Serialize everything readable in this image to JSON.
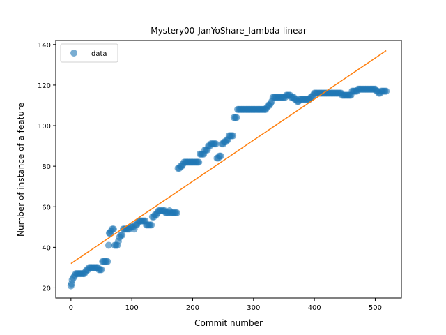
{
  "chart_data": {
    "type": "scatter",
    "title": "Mystery00-JanYoShare_lambda-linear",
    "xlabel": "Commit number",
    "ylabel": "Number of instance of a feature",
    "xlim": [
      -25,
      543
    ],
    "ylim": [
      15,
      142
    ],
    "x_ticks": [
      0,
      100,
      200,
      300,
      400,
      500
    ],
    "y_ticks": [
      20,
      40,
      60,
      80,
      100,
      120,
      140
    ],
    "grid": false,
    "legend_position": "top-left",
    "series": [
      {
        "name": "data",
        "kind": "scatter",
        "color": "#1f77b4",
        "points": [
          [
            0,
            21
          ],
          [
            1,
            22
          ],
          [
            2,
            24
          ],
          [
            4,
            25
          ],
          [
            6,
            26
          ],
          [
            8,
            27
          ],
          [
            10,
            27
          ],
          [
            12,
            27
          ],
          [
            14,
            27
          ],
          [
            16,
            27
          ],
          [
            18,
            27
          ],
          [
            20,
            27
          ],
          [
            22,
            27
          ],
          [
            24,
            28
          ],
          [
            26,
            29
          ],
          [
            28,
            29
          ],
          [
            30,
            30
          ],
          [
            32,
            30
          ],
          [
            34,
            30
          ],
          [
            36,
            30
          ],
          [
            38,
            30
          ],
          [
            40,
            30
          ],
          [
            42,
            30
          ],
          [
            44,
            30
          ],
          [
            46,
            29
          ],
          [
            48,
            29
          ],
          [
            50,
            29
          ],
          [
            52,
            33
          ],
          [
            54,
            33
          ],
          [
            56,
            33
          ],
          [
            58,
            33
          ],
          [
            60,
            33
          ],
          [
            62,
            41
          ],
          [
            63,
            47
          ],
          [
            64,
            47
          ],
          [
            66,
            48
          ],
          [
            68,
            49
          ],
          [
            70,
            49
          ],
          [
            72,
            41
          ],
          [
            74,
            41
          ],
          [
            76,
            41
          ],
          [
            78,
            43
          ],
          [
            80,
            45
          ],
          [
            82,
            46
          ],
          [
            84,
            46
          ],
          [
            86,
            49
          ],
          [
            88,
            49
          ],
          [
            90,
            49
          ],
          [
            92,
            49
          ],
          [
            94,
            49
          ],
          [
            96,
            49
          ],
          [
            98,
            50
          ],
          [
            100,
            50
          ],
          [
            102,
            50
          ],
          [
            104,
            49
          ],
          [
            106,
            51
          ],
          [
            108,
            51
          ],
          [
            110,
            52
          ],
          [
            112,
            53
          ],
          [
            114,
            53
          ],
          [
            116,
            53
          ],
          [
            118,
            53
          ],
          [
            120,
            53
          ],
          [
            122,
            53
          ],
          [
            124,
            51
          ],
          [
            126,
            51
          ],
          [
            128,
            51
          ],
          [
            130,
            51
          ],
          [
            132,
            51
          ],
          [
            134,
            55
          ],
          [
            136,
            55
          ],
          [
            138,
            56
          ],
          [
            140,
            56
          ],
          [
            142,
            57
          ],
          [
            144,
            58
          ],
          [
            146,
            58
          ],
          [
            148,
            58
          ],
          [
            150,
            58
          ],
          [
            152,
            58
          ],
          [
            154,
            58
          ],
          [
            156,
            57
          ],
          [
            158,
            57
          ],
          [
            160,
            57
          ],
          [
            162,
            58
          ],
          [
            164,
            57
          ],
          [
            166,
            57
          ],
          [
            168,
            57
          ],
          [
            170,
            57
          ],
          [
            172,
            57
          ],
          [
            174,
            57
          ],
          [
            176,
            79
          ],
          [
            178,
            79
          ],
          [
            180,
            80
          ],
          [
            182,
            80
          ],
          [
            184,
            81
          ],
          [
            186,
            82
          ],
          [
            188,
            82
          ],
          [
            190,
            82
          ],
          [
            192,
            82
          ],
          [
            194,
            82
          ],
          [
            196,
            82
          ],
          [
            198,
            82
          ],
          [
            200,
            82
          ],
          [
            202,
            82
          ],
          [
            204,
            82
          ],
          [
            206,
            82
          ],
          [
            208,
            82
          ],
          [
            210,
            82
          ],
          [
            212,
            86
          ],
          [
            214,
            86
          ],
          [
            216,
            86
          ],
          [
            218,
            86
          ],
          [
            220,
            88
          ],
          [
            222,
            88
          ],
          [
            224,
            88
          ],
          [
            226,
            90
          ],
          [
            228,
            90
          ],
          [
            230,
            91
          ],
          [
            232,
            91
          ],
          [
            234,
            91
          ],
          [
            236,
            91
          ],
          [
            238,
            91
          ],
          [
            240,
            84
          ],
          [
            242,
            84
          ],
          [
            244,
            85
          ],
          [
            246,
            85
          ],
          [
            248,
            91
          ],
          [
            250,
            91
          ],
          [
            252,
            92
          ],
          [
            254,
            92
          ],
          [
            256,
            93
          ],
          [
            258,
            93
          ],
          [
            260,
            95
          ],
          [
            262,
            95
          ],
          [
            264,
            95
          ],
          [
            266,
            95
          ],
          [
            268,
            104
          ],
          [
            270,
            104
          ],
          [
            272,
            104
          ],
          [
            274,
            108
          ],
          [
            276,
            108
          ],
          [
            278,
            108
          ],
          [
            280,
            108
          ],
          [
            282,
            108
          ],
          [
            284,
            108
          ],
          [
            286,
            108
          ],
          [
            288,
            108
          ],
          [
            290,
            108
          ],
          [
            292,
            108
          ],
          [
            294,
            108
          ],
          [
            296,
            108
          ],
          [
            298,
            108
          ],
          [
            300,
            108
          ],
          [
            302,
            108
          ],
          [
            304,
            108
          ],
          [
            306,
            108
          ],
          [
            308,
            108
          ],
          [
            310,
            108
          ],
          [
            312,
            108
          ],
          [
            314,
            108
          ],
          [
            316,
            108
          ],
          [
            318,
            108
          ],
          [
            320,
            108
          ],
          [
            322,
            109
          ],
          [
            324,
            110
          ],
          [
            326,
            110
          ],
          [
            328,
            111
          ],
          [
            330,
            112
          ],
          [
            332,
            114
          ],
          [
            334,
            114
          ],
          [
            336,
            114
          ],
          [
            338,
            114
          ],
          [
            340,
            114
          ],
          [
            342,
            114
          ],
          [
            344,
            114
          ],
          [
            346,
            114
          ],
          [
            348,
            114
          ],
          [
            350,
            114
          ],
          [
            352,
            114
          ],
          [
            354,
            115
          ],
          [
            356,
            115
          ],
          [
            358,
            115
          ],
          [
            360,
            115
          ],
          [
            362,
            114
          ],
          [
            364,
            114
          ],
          [
            366,
            114
          ],
          [
            368,
            113
          ],
          [
            370,
            113
          ],
          [
            372,
            112
          ],
          [
            374,
            112
          ],
          [
            376,
            113
          ],
          [
            378,
            113
          ],
          [
            380,
            113
          ],
          [
            382,
            113
          ],
          [
            384,
            113
          ],
          [
            386,
            113
          ],
          [
            388,
            113
          ],
          [
            390,
            113
          ],
          [
            392,
            113
          ],
          [
            394,
            114
          ],
          [
            396,
            114
          ],
          [
            398,
            115
          ],
          [
            400,
            116
          ],
          [
            402,
            116
          ],
          [
            404,
            116
          ],
          [
            406,
            116
          ],
          [
            408,
            116
          ],
          [
            410,
            116
          ],
          [
            412,
            116
          ],
          [
            414,
            116
          ],
          [
            416,
            116
          ],
          [
            418,
            116
          ],
          [
            420,
            116
          ],
          [
            422,
            116
          ],
          [
            424,
            116
          ],
          [
            426,
            116
          ],
          [
            428,
            116
          ],
          [
            430,
            116
          ],
          [
            432,
            116
          ],
          [
            434,
            116
          ],
          [
            436,
            116
          ],
          [
            438,
            116
          ],
          [
            440,
            116
          ],
          [
            442,
            116
          ],
          [
            444,
            116
          ],
          [
            446,
            115
          ],
          [
            448,
            115
          ],
          [
            450,
            115
          ],
          [
            452,
            115
          ],
          [
            454,
            115
          ],
          [
            456,
            115
          ],
          [
            458,
            115
          ],
          [
            460,
            115
          ],
          [
            462,
            117
          ],
          [
            464,
            117
          ],
          [
            466,
            117
          ],
          [
            468,
            117
          ],
          [
            470,
            117
          ],
          [
            472,
            118
          ],
          [
            474,
            118
          ],
          [
            476,
            118
          ],
          [
            478,
            118
          ],
          [
            480,
            118
          ],
          [
            482,
            118
          ],
          [
            484,
            118
          ],
          [
            486,
            118
          ],
          [
            488,
            118
          ],
          [
            490,
            118
          ],
          [
            492,
            118
          ],
          [
            494,
            118
          ],
          [
            496,
            118
          ],
          [
            498,
            118
          ],
          [
            500,
            118
          ],
          [
            502,
            117
          ],
          [
            504,
            117
          ],
          [
            506,
            116
          ],
          [
            508,
            116
          ],
          [
            510,
            117
          ],
          [
            512,
            117
          ],
          [
            514,
            117
          ],
          [
            516,
            117
          ],
          [
            518,
            117
          ]
        ]
      },
      {
        "kind": "line",
        "color": "#ff7f0e",
        "points": [
          [
            0,
            32
          ],
          [
            518,
            137
          ]
        ]
      }
    ]
  }
}
